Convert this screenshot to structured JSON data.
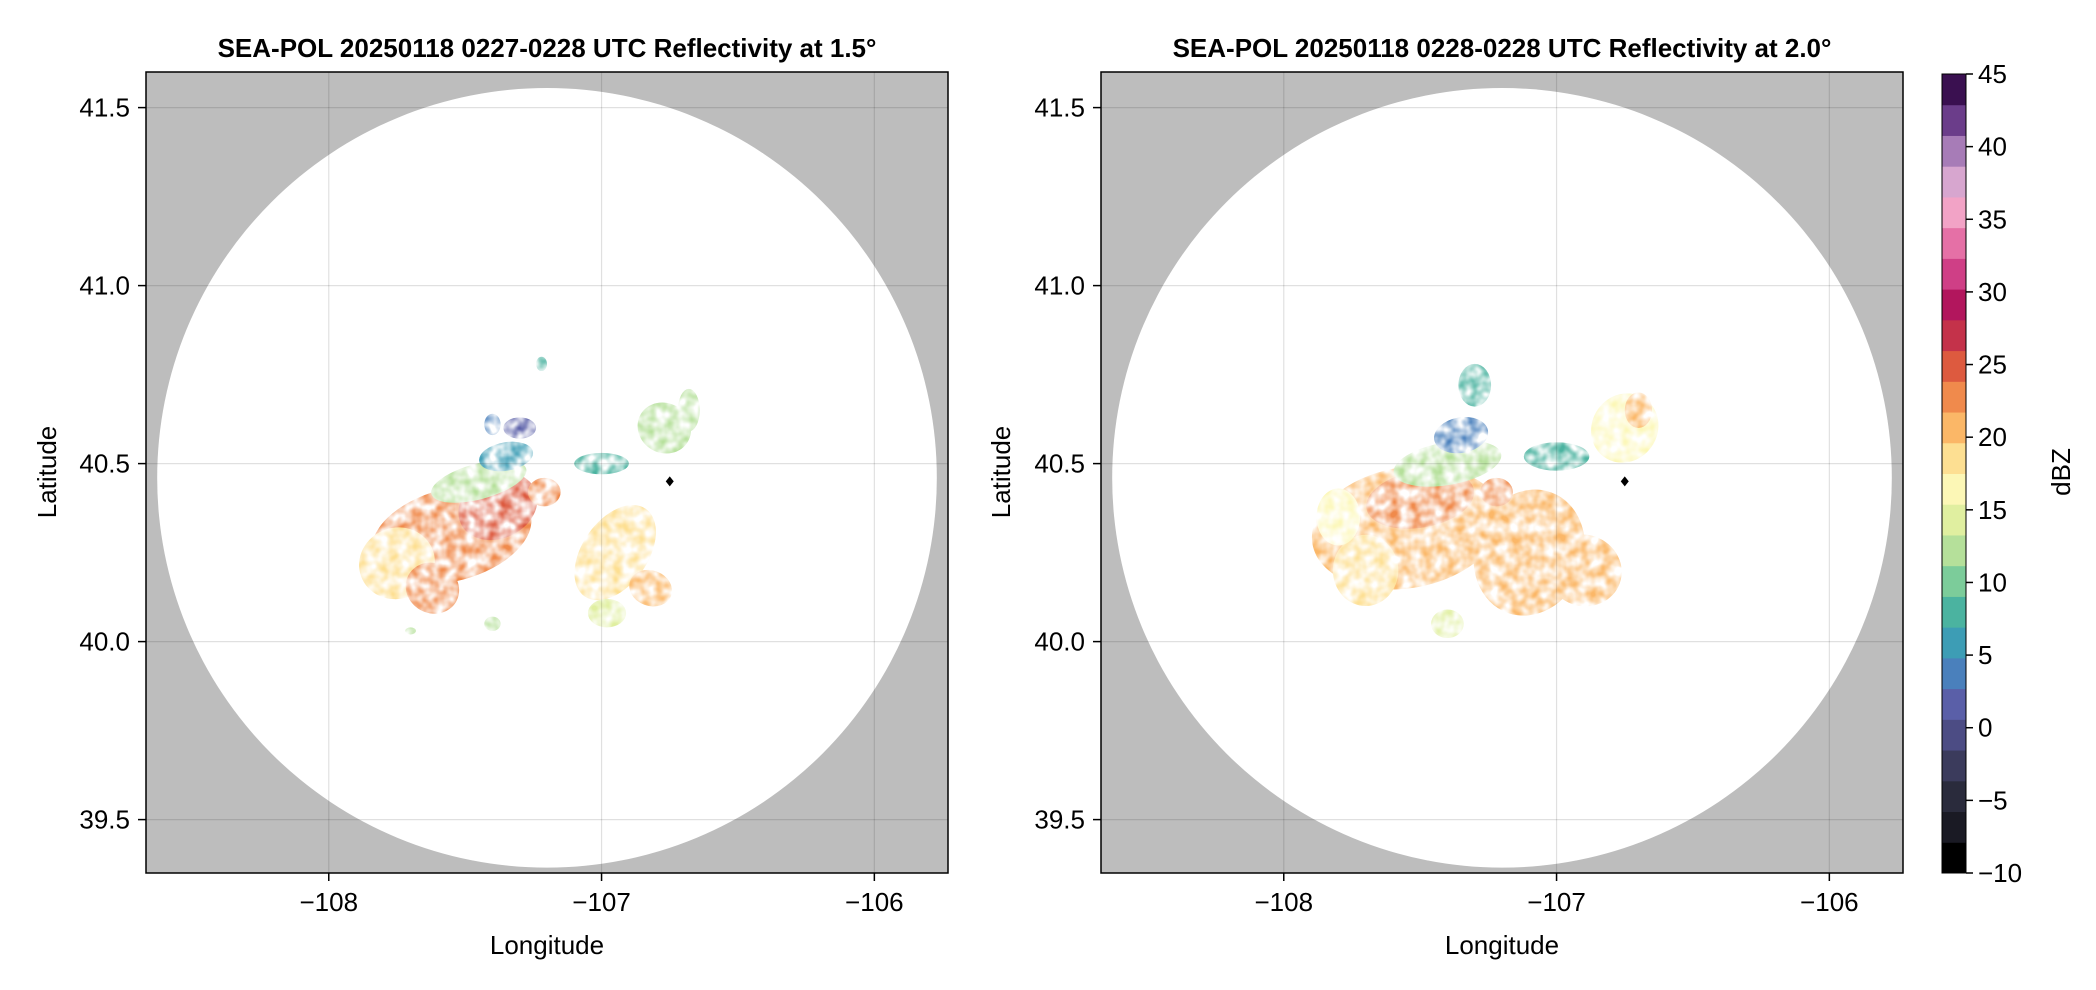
{
  "chart_data": [
    {
      "type": "heatmap",
      "title": "SEA-POL 20250118 0227-0228 UTC Reflectivity at 1.5°",
      "xlabel": "Longitude",
      "ylabel": "Latitude",
      "xlim": [
        -108.67,
        -105.73
      ],
      "ylim": [
        39.35,
        41.6
      ],
      "xticks": [
        -108,
        -107,
        -106
      ],
      "xtick_labels": [
        "−108",
        "−107",
        "−106"
      ],
      "yticks": [
        39.5,
        40.0,
        40.5,
        41.0,
        41.5
      ],
      "ytick_labels": [
        "39.5",
        "40.0",
        "40.5",
        "41.0",
        "41.5"
      ],
      "grid": true,
      "radar_center": [
        -107.2,
        40.46
      ],
      "coverage_radius_deg_lat": 1.095,
      "outside_coverage_color": "#bdbdbd",
      "marker": {
        "lon": -106.75,
        "lat": 40.45,
        "shape": "diamond",
        "color": "#000000"
      },
      "echoes": [
        {
          "lon": -107.55,
          "lat": 40.3,
          "sx": 0.3,
          "sy": 0.13,
          "dbz": 28,
          "rot": -15
        },
        {
          "lon": -107.38,
          "lat": 40.38,
          "sx": 0.15,
          "sy": 0.09,
          "dbz": 30,
          "rot": -25
        },
        {
          "lon": -107.75,
          "lat": 40.22,
          "sx": 0.14,
          "sy": 0.1,
          "dbz": 24,
          "rot": -20
        },
        {
          "lon": -107.62,
          "lat": 40.15,
          "sx": 0.1,
          "sy": 0.07,
          "dbz": 29,
          "rot": 30
        },
        {
          "lon": -107.45,
          "lat": 40.45,
          "sx": 0.18,
          "sy": 0.05,
          "dbz": 17,
          "rot": -15
        },
        {
          "lon": -107.35,
          "lat": 40.52,
          "sx": 0.1,
          "sy": 0.04,
          "dbz": 8,
          "rot": -10
        },
        {
          "lon": -107.3,
          "lat": 40.6,
          "sx": 0.06,
          "sy": 0.03,
          "dbz": 4,
          "rot": 0
        },
        {
          "lon": -107.4,
          "lat": 40.61,
          "sx": 0.03,
          "sy": 0.03,
          "dbz": 6,
          "rot": 0
        },
        {
          "lon": -107.0,
          "lat": 40.5,
          "sx": 0.1,
          "sy": 0.03,
          "dbz": 10,
          "rot": 0
        },
        {
          "lon": -107.21,
          "lat": 40.42,
          "sx": 0.06,
          "sy": 0.04,
          "dbz": 29,
          "rot": 0
        },
        {
          "lon": -106.95,
          "lat": 40.25,
          "sx": 0.12,
          "sy": 0.15,
          "dbz": 24,
          "rot": 35
        },
        {
          "lon": -106.82,
          "lat": 40.15,
          "sx": 0.08,
          "sy": 0.05,
          "dbz": 26,
          "rot": 20
        },
        {
          "lon": -106.98,
          "lat": 40.08,
          "sx": 0.07,
          "sy": 0.04,
          "dbz": 18,
          "rot": 0
        },
        {
          "lon": -106.77,
          "lat": 40.6,
          "sx": 0.1,
          "sy": 0.07,
          "dbz": 17,
          "rot": 30
        },
        {
          "lon": -106.68,
          "lat": 40.65,
          "sx": 0.04,
          "sy": 0.06,
          "dbz": 15,
          "rot": 0
        },
        {
          "lon": -107.22,
          "lat": 40.78,
          "sx": 0.02,
          "sy": 0.02,
          "dbz": 12,
          "rot": 0
        },
        {
          "lon": -107.7,
          "lat": 40.03,
          "sx": 0.02,
          "sy": 0.01,
          "dbz": 15,
          "rot": 0
        },
        {
          "lon": -107.4,
          "lat": 40.05,
          "sx": 0.03,
          "sy": 0.02,
          "dbz": 17,
          "rot": 0
        }
      ]
    },
    {
      "type": "heatmap",
      "title": "SEA-POL 20250118 0228-0228 UTC Reflectivity at 2.0°",
      "xlabel": "Longitude",
      "ylabel": "Latitude",
      "xlim": [
        -108.67,
        -105.73
      ],
      "ylim": [
        39.35,
        41.6
      ],
      "xticks": [
        -108,
        -107,
        -106
      ],
      "xtick_labels": [
        "−108",
        "−107",
        "−106"
      ],
      "yticks": [
        39.5,
        40.0,
        40.5,
        41.0,
        41.5
      ],
      "ytick_labels": [
        "39.5",
        "40.0",
        "40.5",
        "41.0",
        "41.5"
      ],
      "grid": true,
      "radar_center": [
        -107.2,
        40.46
      ],
      "coverage_radius_deg_lat": 1.095,
      "outside_coverage_color": "#bdbdbd",
      "marker": {
        "lon": -106.75,
        "lat": 40.45,
        "shape": "diamond",
        "color": "#000000"
      },
      "echoes": [
        {
          "lon": -107.55,
          "lat": 40.32,
          "sx": 0.35,
          "sy": 0.17,
          "dbz": 25,
          "rot": -10
        },
        {
          "lon": -107.5,
          "lat": 40.4,
          "sx": 0.2,
          "sy": 0.08,
          "dbz": 28,
          "rot": -10
        },
        {
          "lon": -107.7,
          "lat": 40.2,
          "sx": 0.12,
          "sy": 0.1,
          "dbz": 24,
          "rot": 0
        },
        {
          "lon": -107.4,
          "lat": 40.5,
          "sx": 0.2,
          "sy": 0.06,
          "dbz": 15,
          "rot": -10
        },
        {
          "lon": -107.35,
          "lat": 40.58,
          "sx": 0.1,
          "sy": 0.05,
          "dbz": 5,
          "rot": -10
        },
        {
          "lon": -107.3,
          "lat": 40.72,
          "sx": 0.06,
          "sy": 0.06,
          "dbz": 10,
          "rot": 0
        },
        {
          "lon": -107.0,
          "lat": 40.52,
          "sx": 0.12,
          "sy": 0.04,
          "dbz": 10,
          "rot": 0
        },
        {
          "lon": -107.1,
          "lat": 40.25,
          "sx": 0.2,
          "sy": 0.18,
          "dbz": 27,
          "rot": 20
        },
        {
          "lon": -106.9,
          "lat": 40.2,
          "sx": 0.14,
          "sy": 0.1,
          "dbz": 25,
          "rot": 20
        },
        {
          "lon": -106.75,
          "lat": 40.6,
          "sx": 0.12,
          "sy": 0.1,
          "dbz": 22,
          "rot": 35
        },
        {
          "lon": -106.7,
          "lat": 40.65,
          "sx": 0.05,
          "sy": 0.05,
          "dbz": 27,
          "rot": 0
        },
        {
          "lon": -107.4,
          "lat": 40.05,
          "sx": 0.06,
          "sy": 0.04,
          "dbz": 18,
          "rot": 0
        },
        {
          "lon": -107.8,
          "lat": 40.35,
          "sx": 0.08,
          "sy": 0.08,
          "dbz": 20,
          "rot": 0
        },
        {
          "lon": -107.22,
          "lat": 40.42,
          "sx": 0.06,
          "sy": 0.04,
          "dbz": 28,
          "rot": 0
        }
      ]
    }
  ],
  "colorbar": {
    "label": "dBZ",
    "min": -10,
    "max": 45,
    "ticks": [
      -10,
      -5,
      0,
      5,
      10,
      15,
      20,
      25,
      30,
      35,
      40,
      45
    ],
    "tick_labels": [
      "−10",
      "−5",
      "0",
      "5",
      "10",
      "15",
      "20",
      "25",
      "30",
      "35",
      "40",
      "45"
    ],
    "bins": 22,
    "colors": [
      "#000000",
      "#1a1a24",
      "#2a2b3c",
      "#3b3b5c",
      "#4c4c84",
      "#5a5fa8",
      "#4a80bc",
      "#3d9db5",
      "#4bb3a0",
      "#7ccc9a",
      "#b5e09a",
      "#e0efa0",
      "#fcf7b6",
      "#fddf92",
      "#fbb767",
      "#f08a4c",
      "#dd5a3f",
      "#c4324a",
      "#b2165d",
      "#cf3f86",
      "#e570a6",
      "#f2a3c6",
      "#d7a6cf",
      "#a77cb7",
      "#6b3d8a",
      "#3a1050"
    ]
  }
}
